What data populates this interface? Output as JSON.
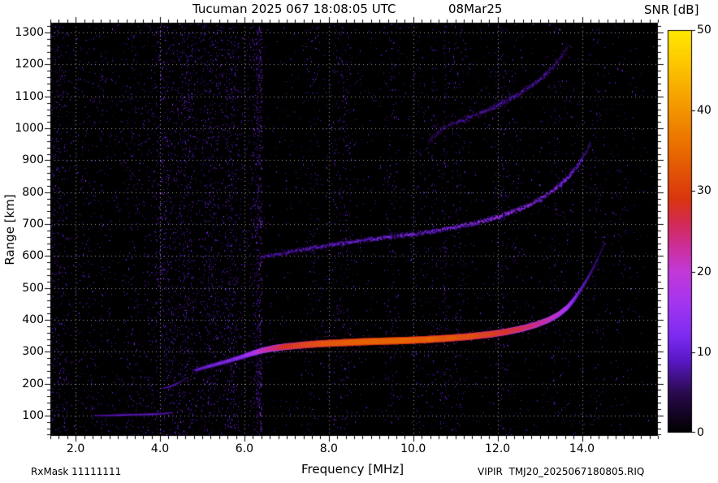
{
  "header": {
    "title": "Tucuman 2025 067 18:08:05 UTC",
    "date": "08Mar25"
  },
  "footer": {
    "rxmask": "RxMask 11111111",
    "file": "VIPIR  TMJ20_2025067180805.RIQ"
  },
  "chart_data": {
    "type": "heatmap",
    "title": "Tucuman 2025 067 18:08:05 UTC 08Mar25",
    "xlabel": "Frequency [MHz]",
    "ylabel": "Range [km]",
    "xlim": [
      1.4,
      15.8
    ],
    "ylim": [
      36,
      1331
    ],
    "x_minor_step": 0.2,
    "y_minor_step": 20,
    "x_tick_values": [
      2,
      4,
      6,
      8,
      10,
      12,
      14
    ],
    "x_tick_labels": [
      "2.0",
      "4.0",
      "6.0",
      "8.0",
      "10.0",
      "12.0",
      "14.0"
    ],
    "y_tick_values": [
      100,
      200,
      300,
      400,
      500,
      600,
      700,
      800,
      900,
      1000,
      1100,
      1200,
      1300
    ],
    "y_tick_labels": [
      "100",
      "200",
      "300",
      "400",
      "500",
      "600",
      "700",
      "800",
      "900",
      "1000",
      "1100",
      "1200",
      "1300"
    ],
    "grid": "dotted-white",
    "background_color": "#000000",
    "colorbar": {
      "label": "SNR [dB]",
      "min": 0,
      "max": 50,
      "ticks": [
        0,
        10,
        20,
        30,
        40,
        50
      ],
      "tick_labels": [
        "0",
        "10",
        "20",
        "30",
        "40",
        "50"
      ],
      "position": "right",
      "palette": [
        [
          0.0,
          "#000000"
        ],
        [
          0.1,
          "#2b0a50"
        ],
        [
          0.18,
          "#5a18c8"
        ],
        [
          0.24,
          "#7d2bf0"
        ],
        [
          0.32,
          "#a335f0"
        ],
        [
          0.4,
          "#c238d8"
        ],
        [
          0.46,
          "#cc2f9a"
        ],
        [
          0.52,
          "#d22a55"
        ],
        [
          0.58,
          "#d9350f"
        ],
        [
          0.7,
          "#e86a00"
        ],
        [
          0.82,
          "#f59c00"
        ],
        [
          0.92,
          "#fdc800"
        ],
        [
          1.0,
          "#ffe800"
        ]
      ]
    },
    "traces": [
      {
        "name": "E-layer-echo",
        "style": "solid",
        "thickness": 2,
        "spread": 2,
        "points": [
          [
            2.45,
            100,
            8
          ],
          [
            2.7,
            100,
            9
          ],
          [
            3.0,
            101,
            10
          ],
          [
            3.3,
            102,
            10
          ],
          [
            3.6,
            103,
            10
          ],
          [
            3.9,
            104,
            10
          ],
          [
            4.1,
            106,
            9
          ],
          [
            4.3,
            109,
            8
          ]
        ]
      },
      {
        "name": "E-cusp-echo",
        "style": "solid",
        "thickness": 2,
        "spread": 2,
        "points": [
          [
            4.05,
            185,
            7
          ],
          [
            4.2,
            189,
            9
          ],
          [
            4.35,
            196,
            10
          ],
          [
            4.5,
            206,
            8
          ],
          [
            4.6,
            216,
            6
          ]
        ]
      },
      {
        "name": "F-layer-first-hop",
        "style": "solid",
        "thickness": 4,
        "spread": 4,
        "points": [
          [
            4.85,
            242,
            9
          ],
          [
            5.05,
            250,
            11
          ],
          [
            5.3,
            259,
            12
          ],
          [
            5.6,
            270,
            13
          ],
          [
            5.9,
            282,
            15
          ],
          [
            6.15,
            293,
            18
          ],
          [
            6.4,
            303,
            22
          ],
          [
            6.7,
            311,
            26
          ],
          [
            7.0,
            316,
            29
          ],
          [
            7.4,
            321,
            32
          ],
          [
            7.8,
            325,
            34
          ],
          [
            8.3,
            328,
            35
          ],
          [
            8.8,
            331,
            36
          ],
          [
            9.3,
            333,
            36
          ],
          [
            9.8,
            335,
            36
          ],
          [
            10.3,
            338,
            35
          ],
          [
            10.8,
            342,
            34
          ],
          [
            11.3,
            347,
            33
          ],
          [
            11.8,
            354,
            31
          ],
          [
            12.2,
            362,
            29
          ],
          [
            12.6,
            373,
            27
          ],
          [
            12.9,
            384,
            25
          ],
          [
            13.2,
            399,
            23
          ],
          [
            13.45,
            417,
            21
          ],
          [
            13.65,
            438,
            19
          ],
          [
            13.8,
            461,
            16
          ],
          [
            13.95,
            489,
            13
          ],
          [
            14.1,
            520,
            11
          ],
          [
            14.25,
            555,
            9
          ],
          [
            14.4,
            595,
            8
          ],
          [
            14.55,
            640,
            6
          ]
        ]
      },
      {
        "name": "F-layer-second-hop",
        "style": "diffuse",
        "thickness": 2,
        "spread": 4,
        "points": [
          [
            6.35,
            597,
            9
          ],
          [
            6.7,
            606,
            11
          ],
          [
            7.1,
            615,
            12
          ],
          [
            7.5,
            624,
            13
          ],
          [
            7.9,
            633,
            13
          ],
          [
            8.3,
            641,
            14
          ],
          [
            8.7,
            649,
            14
          ],
          [
            9.1,
            656,
            15
          ],
          [
            9.5,
            663,
            15
          ],
          [
            9.9,
            669,
            16
          ],
          [
            10.3,
            676,
            16
          ],
          [
            10.7,
            685,
            17
          ],
          [
            11.1,
            695,
            18
          ],
          [
            11.5,
            707,
            19
          ],
          [
            11.9,
            721,
            20
          ],
          [
            12.3,
            738,
            21
          ],
          [
            12.7,
            759,
            21
          ],
          [
            13.0,
            780,
            20
          ],
          [
            13.3,
            806,
            19
          ],
          [
            13.55,
            834,
            17
          ],
          [
            13.75,
            863,
            15
          ],
          [
            13.95,
            897,
            12
          ],
          [
            14.1,
            930,
            9
          ],
          [
            14.2,
            958,
            7
          ]
        ]
      },
      {
        "name": "F-layer-third-hop",
        "style": "diffuse",
        "thickness": 2,
        "spread": 5,
        "points": [
          [
            10.35,
            960,
            6
          ],
          [
            10.7,
            1005,
            8
          ],
          [
            11.0,
            1020,
            9
          ],
          [
            11.3,
            1035,
            10
          ],
          [
            11.6,
            1050,
            10
          ],
          [
            11.9,
            1068,
            11
          ],
          [
            12.2,
            1088,
            11
          ],
          [
            12.5,
            1110,
            11
          ],
          [
            12.8,
            1136,
            10
          ],
          [
            13.05,
            1162,
            10
          ],
          [
            13.3,
            1194,
            9
          ],
          [
            13.5,
            1226,
            8
          ],
          [
            13.65,
            1258,
            6
          ]
        ]
      }
    ],
    "noise": {
      "seed": 20250308,
      "base_density": 0.016,
      "left_boost_below_mhz": 6.3,
      "left_boost": 2.3,
      "snr_range": [
        3,
        11
      ],
      "stripes": [
        {
          "freq": 6.37,
          "snr": 13,
          "width": 2,
          "density": 0.5
        },
        {
          "freq": 6.3,
          "snr": 9,
          "width": 1,
          "density": 0.25
        },
        {
          "freq": 10.75,
          "snr": 8,
          "width": 2,
          "density": 0.18
        },
        {
          "freq": 12.1,
          "snr": 8,
          "width": 2,
          "density": 0.15
        },
        {
          "freq": 10.45,
          "snr": 7,
          "width": 1,
          "density": 0.12
        },
        {
          "freq": 13.35,
          "snr": 7,
          "width": 1,
          "density": 0.1
        },
        {
          "freq": 2.6,
          "snr": 7,
          "width": 1,
          "density": 0.12
        },
        {
          "freq": 4.75,
          "snr": 7,
          "width": 1,
          "density": 0.1
        },
        {
          "freq": 8.3,
          "snr": 6,
          "width": 1,
          "density": 0.1
        }
      ]
    }
  }
}
